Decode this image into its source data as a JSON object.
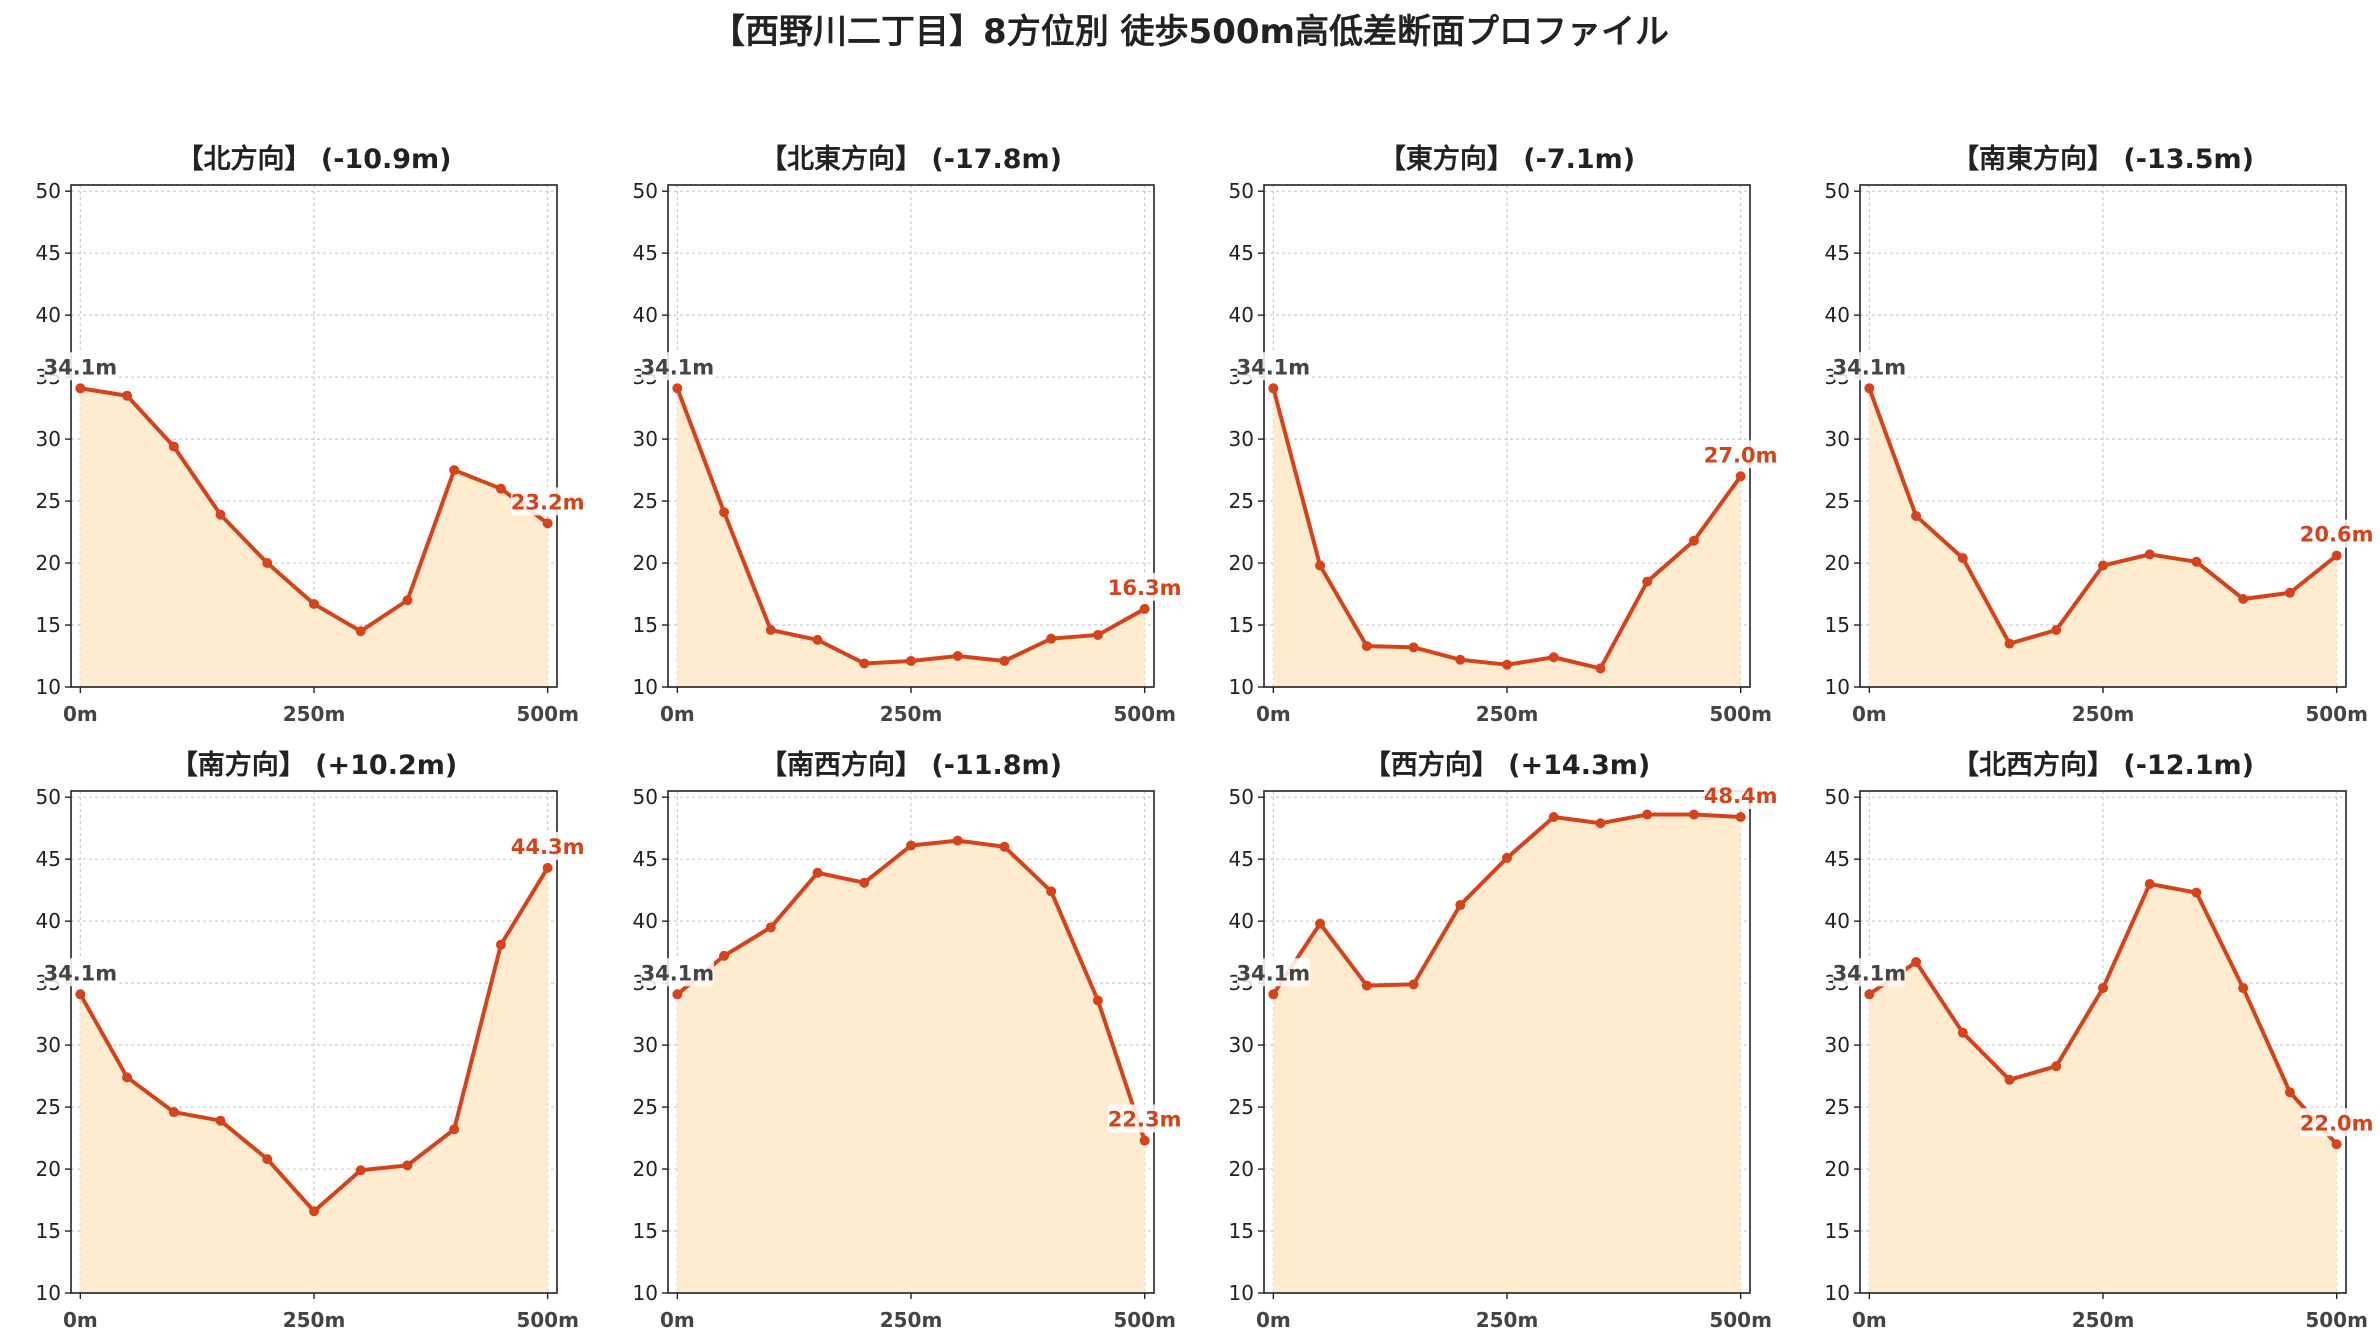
{
  "title": "【西野川二丁目】8方位別 徒歩500m高低差断面プロファイル",
  "colors": {
    "line": "#d5431b",
    "fill": "#ffecd0",
    "start_label": "#444444",
    "end_label": "#d5431b",
    "grid": "#cccccc",
    "axis": "#222222"
  },
  "chart_data": [
    {
      "type": "area",
      "title": "【北方向】 (-10.9m)",
      "x": [
        0,
        50,
        100,
        150,
        200,
        250,
        300,
        350,
        400,
        450,
        500
      ],
      "y": [
        34.1,
        33.5,
        29.4,
        23.9,
        20.0,
        16.7,
        14.5,
        17.0,
        27.5,
        26.0,
        23.2
      ],
      "xticks": [
        0,
        250,
        500
      ],
      "xtick_labels": [
        "0m",
        "250m",
        "500m"
      ],
      "yticks": [
        10,
        15,
        20,
        25,
        30,
        35,
        40,
        45,
        50
      ],
      "xlim": [
        -10,
        510
      ],
      "ylim": [
        10,
        50.5
      ],
      "grid": true,
      "start_label": "34.1m",
      "end_label": "23.2m"
    },
    {
      "type": "area",
      "title": "【北東方向】 (-17.8m)",
      "x": [
        0,
        50,
        100,
        150,
        200,
        250,
        300,
        350,
        400,
        450,
        500
      ],
      "y": [
        34.1,
        24.1,
        14.6,
        13.8,
        11.9,
        12.1,
        12.5,
        12.1,
        13.9,
        14.2,
        16.3
      ],
      "xticks": [
        0,
        250,
        500
      ],
      "xtick_labels": [
        "0m",
        "250m",
        "500m"
      ],
      "yticks": [
        10,
        15,
        20,
        25,
        30,
        35,
        40,
        45,
        50
      ],
      "xlim": [
        -10,
        510
      ],
      "ylim": [
        10,
        50.5
      ],
      "grid": true,
      "start_label": "34.1m",
      "end_label": "16.3m"
    },
    {
      "type": "area",
      "title": "【東方向】 (-7.1m)",
      "x": [
        0,
        50,
        100,
        150,
        200,
        250,
        300,
        350,
        400,
        450,
        500
      ],
      "y": [
        34.1,
        19.8,
        13.3,
        13.2,
        12.2,
        11.8,
        12.4,
        11.5,
        18.5,
        21.8,
        27.0
      ],
      "xticks": [
        0,
        250,
        500
      ],
      "xtick_labels": [
        "0m",
        "250m",
        "500m"
      ],
      "yticks": [
        10,
        15,
        20,
        25,
        30,
        35,
        40,
        45,
        50
      ],
      "xlim": [
        -10,
        510
      ],
      "ylim": [
        10,
        50.5
      ],
      "grid": true,
      "start_label": "34.1m",
      "end_label": "27.0m"
    },
    {
      "type": "area",
      "title": "【南東方向】 (-13.5m)",
      "x": [
        0,
        50,
        100,
        150,
        200,
        250,
        300,
        350,
        400,
        450,
        500
      ],
      "y": [
        34.1,
        23.8,
        20.4,
        13.5,
        14.6,
        19.8,
        20.7,
        20.1,
        17.1,
        17.6,
        20.6
      ],
      "xticks": [
        0,
        250,
        500
      ],
      "xtick_labels": [
        "0m",
        "250m",
        "500m"
      ],
      "yticks": [
        10,
        15,
        20,
        25,
        30,
        35,
        40,
        45,
        50
      ],
      "xlim": [
        -10,
        510
      ],
      "ylim": [
        10,
        50.5
      ],
      "grid": true,
      "start_label": "34.1m",
      "end_label": "20.6m"
    },
    {
      "type": "area",
      "title": "【南方向】 (+10.2m)",
      "x": [
        0,
        50,
        100,
        150,
        200,
        250,
        300,
        350,
        400,
        450,
        500
      ],
      "y": [
        34.1,
        27.4,
        24.6,
        23.9,
        20.8,
        16.6,
        19.9,
        20.3,
        23.2,
        38.1,
        44.3
      ],
      "xticks": [
        0,
        250,
        500
      ],
      "xtick_labels": [
        "0m",
        "250m",
        "500m"
      ],
      "yticks": [
        10,
        15,
        20,
        25,
        30,
        35,
        40,
        45,
        50
      ],
      "xlim": [
        -10,
        510
      ],
      "ylim": [
        10,
        50.5
      ],
      "grid": true,
      "start_label": "34.1m",
      "end_label": "44.3m"
    },
    {
      "type": "area",
      "title": "【南西方向】 (-11.8m)",
      "x": [
        0,
        50,
        100,
        150,
        200,
        250,
        300,
        350,
        400,
        450,
        500
      ],
      "y": [
        34.1,
        37.2,
        39.5,
        43.9,
        43.1,
        46.1,
        46.5,
        46.0,
        42.4,
        33.6,
        22.3
      ],
      "xticks": [
        0,
        250,
        500
      ],
      "xtick_labels": [
        "0m",
        "250m",
        "500m"
      ],
      "yticks": [
        10,
        15,
        20,
        25,
        30,
        35,
        40,
        45,
        50
      ],
      "xlim": [
        -10,
        510
      ],
      "ylim": [
        10,
        50.5
      ],
      "grid": true,
      "start_label": "34.1m",
      "end_label": "22.3m"
    },
    {
      "type": "area",
      "title": "【西方向】 (+14.3m)",
      "x": [
        0,
        50,
        100,
        150,
        200,
        250,
        300,
        350,
        400,
        450,
        500
      ],
      "y": [
        34.1,
        39.8,
        34.8,
        34.9,
        41.3,
        45.1,
        48.4,
        47.9,
        48.6,
        48.6,
        48.4
      ],
      "xticks": [
        0,
        250,
        500
      ],
      "xtick_labels": [
        "0m",
        "250m",
        "500m"
      ],
      "yticks": [
        10,
        15,
        20,
        25,
        30,
        35,
        40,
        45,
        50
      ],
      "xlim": [
        -10,
        510
      ],
      "ylim": [
        10,
        50.5
      ],
      "grid": true,
      "start_label": "34.1m",
      "end_label": "48.4m"
    },
    {
      "type": "area",
      "title": "【北西方向】 (-12.1m)",
      "x": [
        0,
        50,
        100,
        150,
        200,
        250,
        300,
        350,
        400,
        450,
        500
      ],
      "y": [
        34.1,
        36.7,
        31.0,
        27.2,
        28.3,
        34.6,
        43.0,
        42.3,
        34.6,
        26.2,
        22.0
      ],
      "xticks": [
        0,
        250,
        500
      ],
      "xtick_labels": [
        "0m",
        "250m",
        "500m"
      ],
      "yticks": [
        10,
        15,
        20,
        25,
        30,
        35,
        40,
        45,
        50
      ],
      "xlim": [
        -10,
        510
      ],
      "ylim": [
        10,
        50.5
      ],
      "grid": true,
      "start_label": "34.1m",
      "end_label": "22.0m"
    }
  ]
}
